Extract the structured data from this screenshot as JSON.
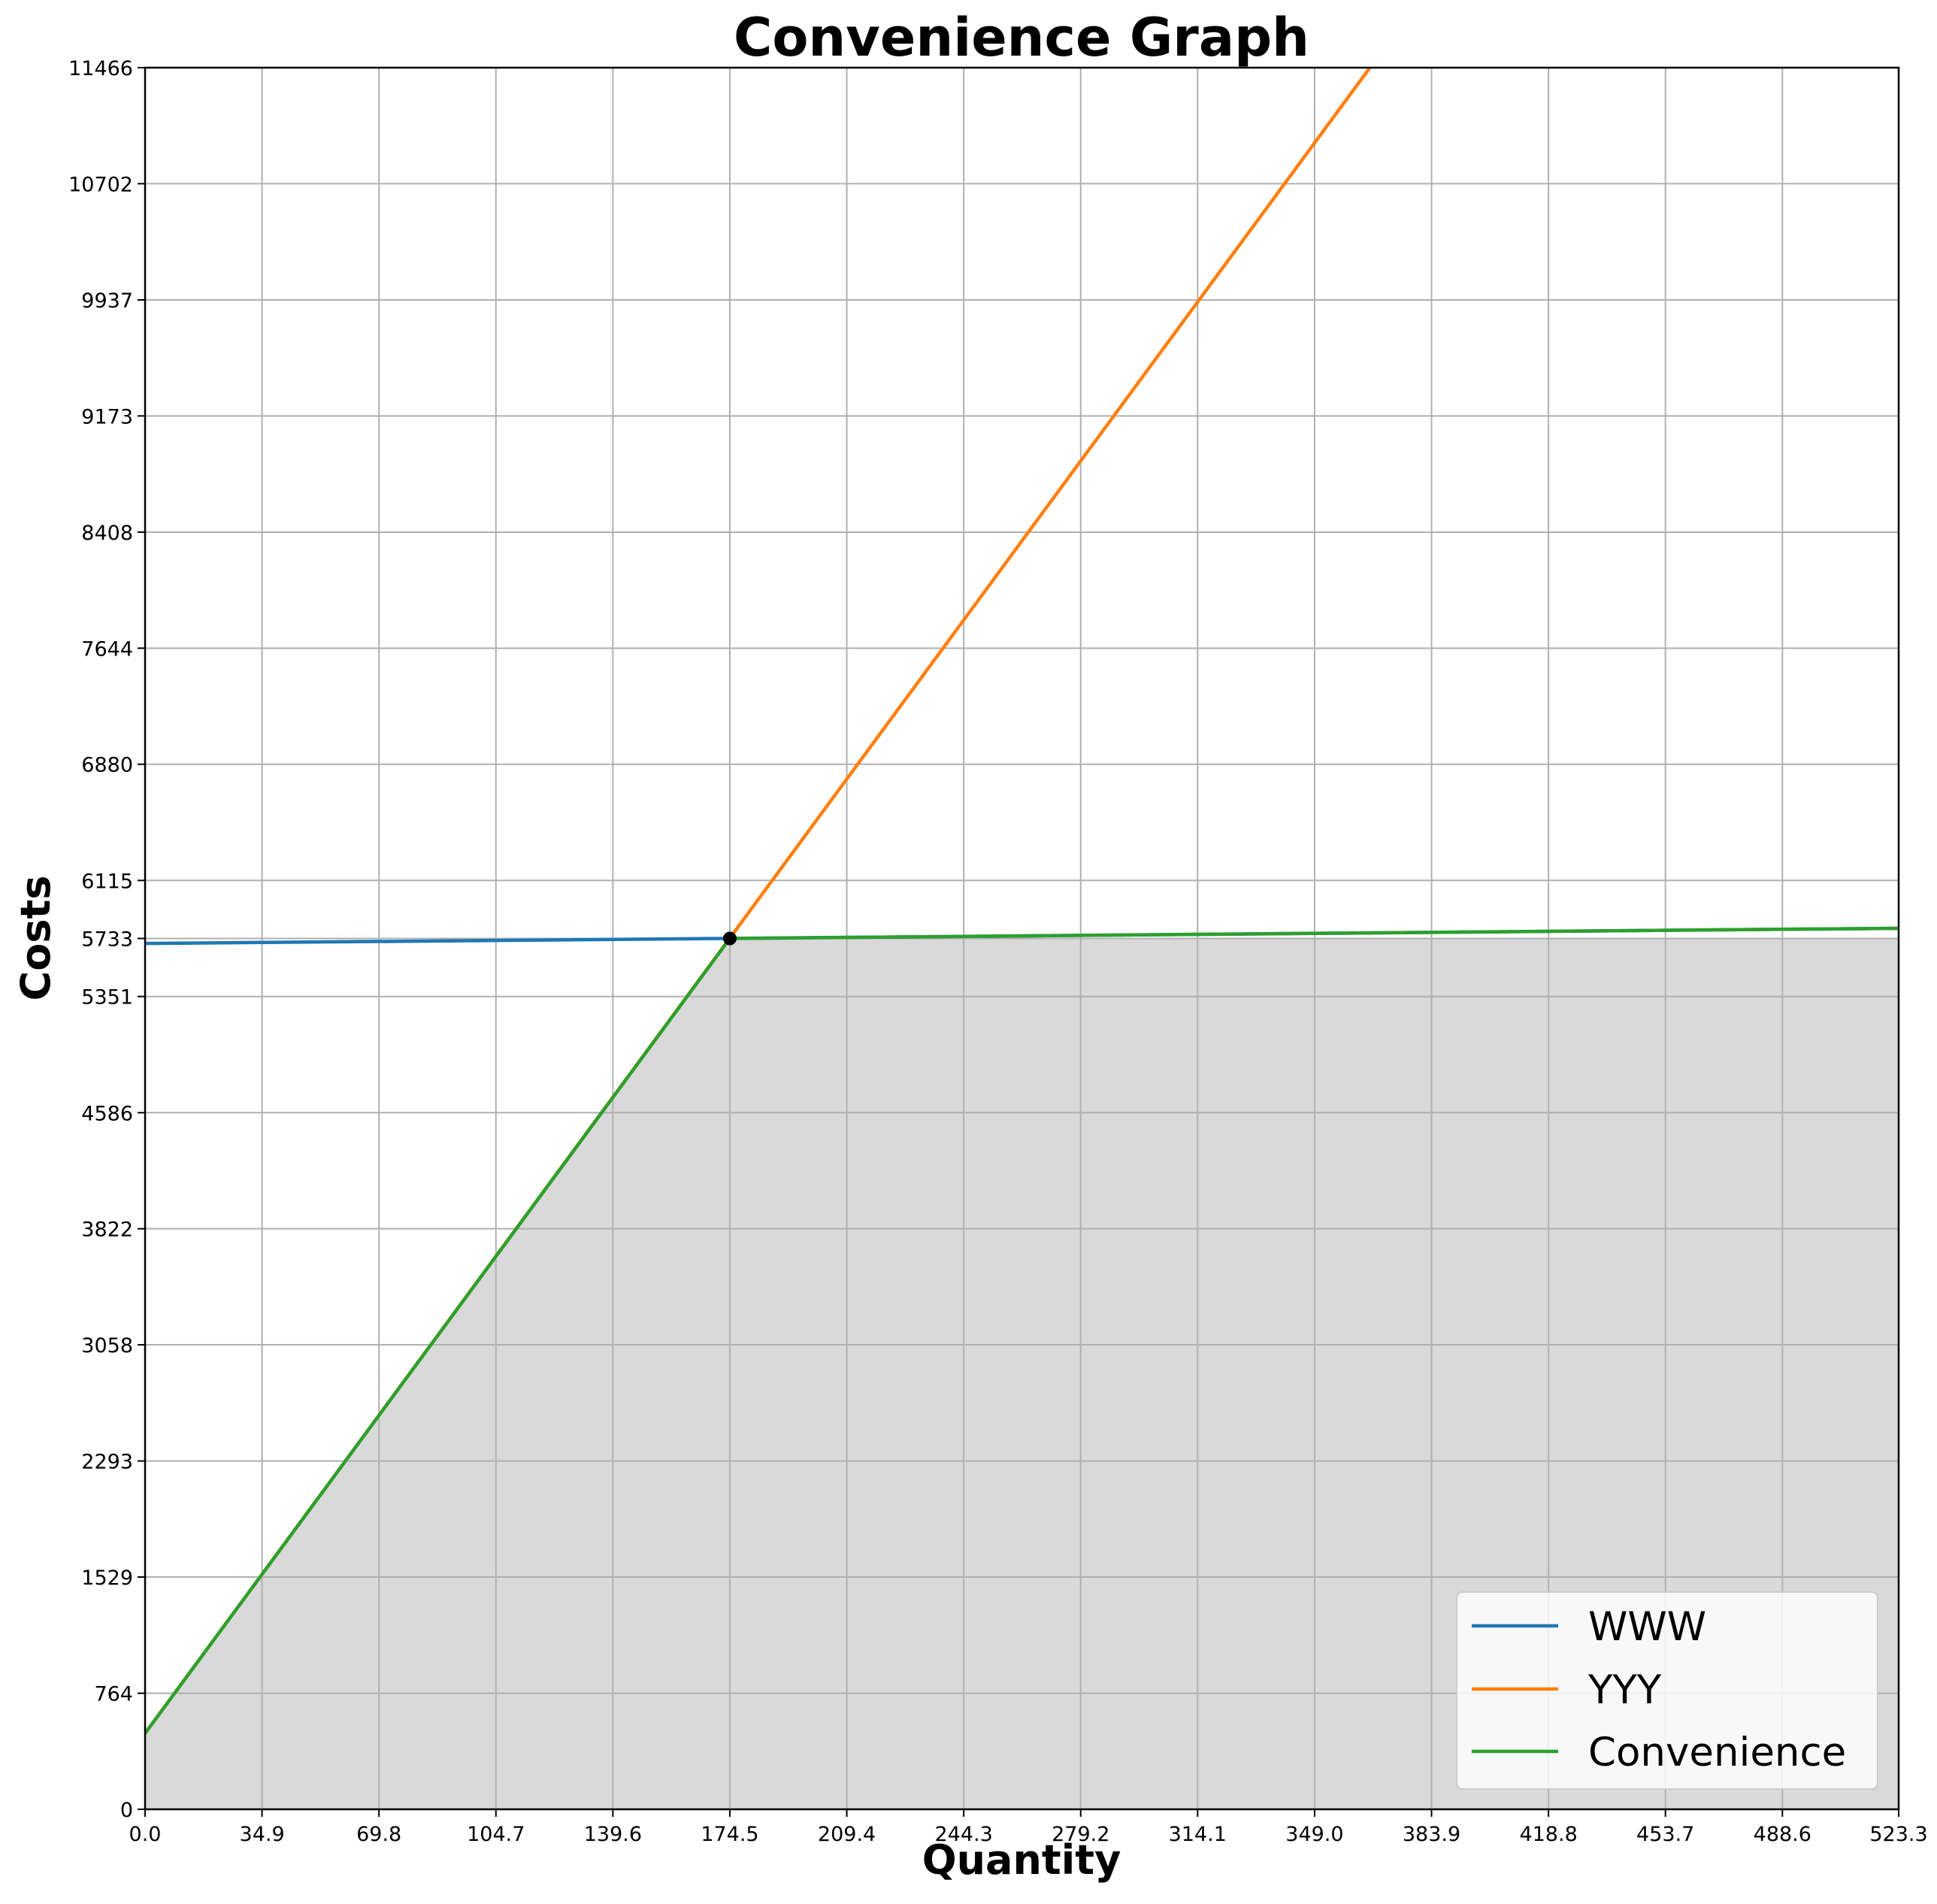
{
  "chart_data": {
    "type": "line",
    "title": "Convenience Graph",
    "xlabel": "Quantity",
    "ylabel": "Costs",
    "xlim": [
      0,
      523.3
    ],
    "ylim": [
      0,
      11466
    ],
    "x_ticks": [
      "0.0",
      "34.9",
      "69.8",
      "104.7",
      "139.6",
      "174.5",
      "209.4",
      "244.3",
      "279.2",
      "314.1",
      "349.0",
      "383.9",
      "418.8",
      "453.7",
      "488.6",
      "523.3"
    ],
    "y_ticks": [
      "0",
      "764",
      "1529",
      "2293",
      "3058",
      "3822",
      "4586",
      "5351",
      "5733",
      "6115",
      "6880",
      "7644",
      "8408",
      "9173",
      "9937",
      "10702",
      "11466"
    ],
    "grid": true,
    "legend_position": "bottom-right",
    "series": [
      {
        "name": "WWW",
        "color": "#1f77b4",
        "x": [
          0,
          523.3
        ],
        "y": [
          5700,
          5800
        ]
      },
      {
        "name": "YYY",
        "color": "#ff7f0e",
        "x": [
          0,
          523.3
        ],
        "y": [
          500,
          16200
        ]
      },
      {
        "name": "Convenience",
        "color": "#2ca02c",
        "x": [
          0,
          174.5,
          523.3
        ],
        "y": [
          500,
          5733,
          5800
        ]
      }
    ],
    "intersection": {
      "x": 174.5,
      "y": 5733,
      "color": "#000000"
    },
    "shaded_area": {
      "color": "#d9d9d9",
      "x": [
        0,
        174.5,
        523.3
      ],
      "y": [
        500,
        5733,
        5733
      ]
    }
  }
}
